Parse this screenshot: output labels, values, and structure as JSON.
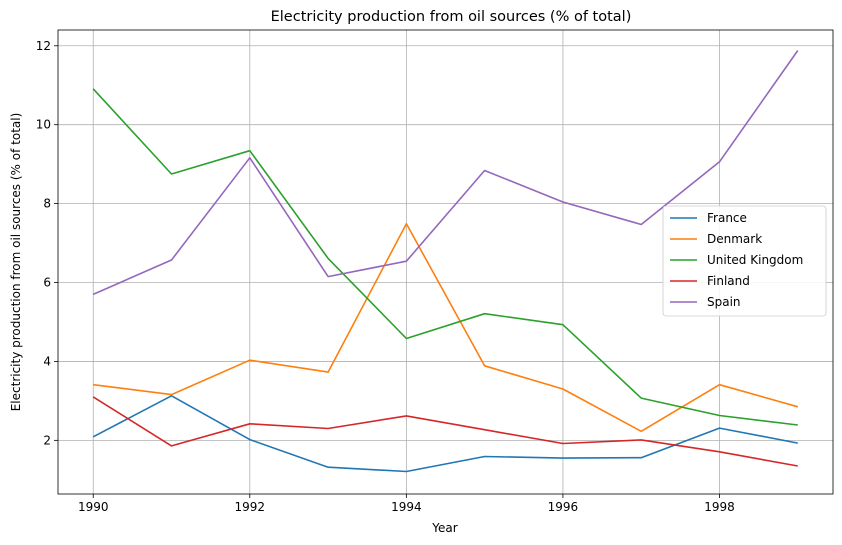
{
  "chart_data": {
    "type": "line",
    "title": "Electricity production from oil sources (% of total)",
    "xlabel": "Year",
    "ylabel": "Electricity production from oil sources (% of total)",
    "x": [
      1990,
      1991,
      1992,
      1993,
      1994,
      1995,
      1996,
      1997,
      1998,
      1999
    ],
    "xlim": [
      1989.55,
      1999.45
    ],
    "ylim": [
      0.64,
      12.4
    ],
    "xticks": [
      1990,
      1992,
      1994,
      1996,
      1998
    ],
    "yticks": [
      2,
      4,
      6,
      8,
      10,
      12
    ],
    "grid": true,
    "legend_position": "center-right",
    "series": [
      {
        "name": "France",
        "color": "#1f77b4",
        "values": [
          2.09,
          3.13,
          2.02,
          1.32,
          1.21,
          1.59,
          1.55,
          1.56,
          2.31,
          1.93
        ]
      },
      {
        "name": "Denmark",
        "color": "#ff7f0e",
        "values": [
          3.41,
          3.16,
          4.03,
          3.73,
          7.49,
          3.89,
          3.3,
          2.23,
          3.41,
          2.85
        ]
      },
      {
        "name": "United Kingdom",
        "color": "#2ca02c",
        "values": [
          10.91,
          8.75,
          9.34,
          6.61,
          4.58,
          5.21,
          4.93,
          3.07,
          2.63,
          2.39
        ]
      },
      {
        "name": "Finland",
        "color": "#d62728",
        "values": [
          3.1,
          1.86,
          2.42,
          2.3,
          2.62,
          2.27,
          1.92,
          2.01,
          1.71,
          1.35
        ]
      },
      {
        "name": "Spain",
        "color": "#9467bd",
        "values": [
          5.7,
          6.57,
          9.16,
          6.15,
          6.54,
          8.84,
          8.04,
          7.47,
          9.06,
          11.88
        ]
      }
    ]
  }
}
